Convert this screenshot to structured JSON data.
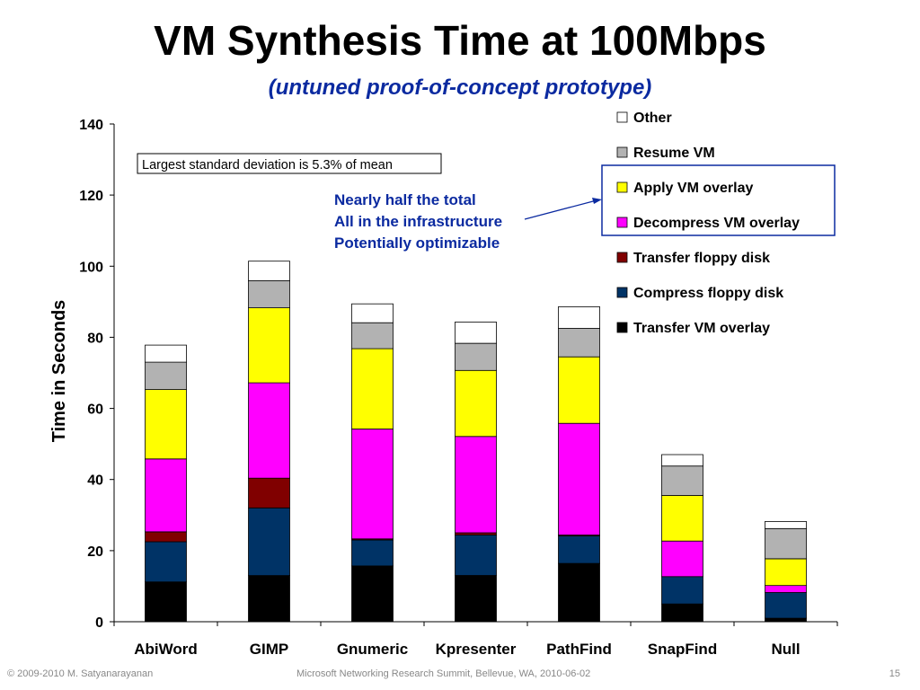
{
  "slide": {
    "title": "VM Synthesis Time at 100Mbps",
    "subtitle": "(untuned proof-of-concept prototype)",
    "footer_left": "© 2009-2010 M. Satyanarayanan",
    "footer_center": "Microsoft Networking Research Summit, Bellevue, WA, 2010-06-02",
    "page_number": "15"
  },
  "chart_data": {
    "type": "bar",
    "stacked": true,
    "categories": [
      "AbiWord",
      "GIMP",
      "Gnumeric",
      "Kpresenter",
      "PathFind",
      "SnapFind",
      "Null"
    ],
    "ylabel": "Time in Seconds",
    "xlabel": "",
    "ylim": [
      0,
      140
    ],
    "yticks": [
      0,
      20,
      40,
      60,
      80,
      100,
      120,
      140
    ],
    "grid": false,
    "legend_position": "top-right",
    "series": [
      {
        "name": "Transfer VM overlay",
        "color": "#000000",
        "values": [
          11.2,
          13.0,
          15.7,
          13.0,
          16.4,
          5.0,
          1.0
        ]
      },
      {
        "name": "Compress floppy disk",
        "color": "#003366",
        "values": [
          11.3,
          19.0,
          7.3,
          11.4,
          7.7,
          7.7,
          7.2
        ]
      },
      {
        "name": "Transfer floppy disk",
        "color": "#800000",
        "values": [
          2.8,
          8.4,
          0.3,
          0.6,
          0.3,
          0.0,
          0.0
        ]
      },
      {
        "name": "Decompress VM overlay",
        "color": "#ff00ff",
        "values": [
          20.5,
          26.8,
          30.9,
          27.1,
          31.4,
          10.0,
          2.0
        ]
      },
      {
        "name": "Apply VM overlay",
        "color": "#ffff00",
        "values": [
          19.5,
          21.1,
          22.6,
          18.6,
          18.7,
          12.8,
          7.5
        ]
      },
      {
        "name": "Resume VM",
        "color": "#b2b2b2",
        "values": [
          7.7,
          7.6,
          7.3,
          7.6,
          8.0,
          8.3,
          8.5
        ]
      },
      {
        "name": "Other",
        "color": "#ffffff",
        "values": [
          4.8,
          5.5,
          5.3,
          6.0,
          6.1,
          3.2,
          2.0
        ]
      }
    ],
    "annotations": {
      "std_note": "Largest standard deviation is  5.3% of mean",
      "callout_lines": [
        "Nearly half the total",
        "All in the infrastructure",
        "Potentially optimizable"
      ],
      "callout_color": "#0b2aa0"
    }
  }
}
